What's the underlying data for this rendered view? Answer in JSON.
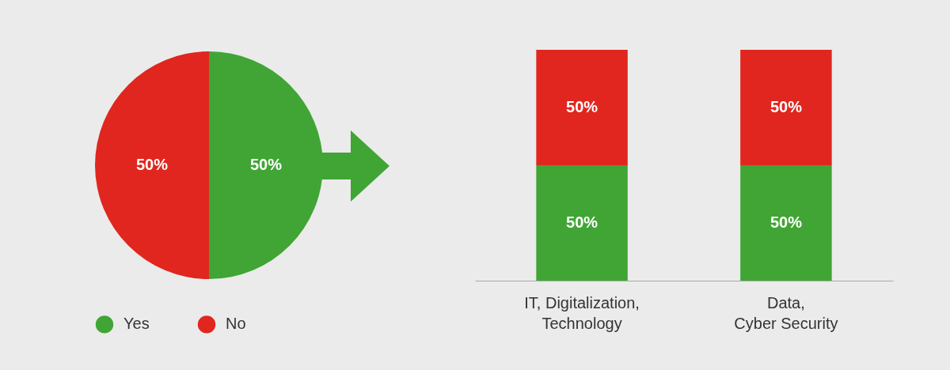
{
  "chart_data": [
    {
      "type": "pie",
      "categories": [
        "Yes",
        "No"
      ],
      "values": [
        50,
        50
      ],
      "value_labels": [
        "50%",
        "50%"
      ],
      "colors": [
        "#40a535",
        "#e0261e"
      ],
      "legend": "bottom"
    },
    {
      "type": "bar",
      "stacked": true,
      "categories": [
        "IT, Digitalization,\nTechnology",
        "Data,\nCyber Security"
      ],
      "series": [
        {
          "color": "#40a535",
          "values": [
            50,
            50
          ],
          "value_labels": [
            "50%",
            "50%"
          ]
        },
        {
          "color": "#e0261e",
          "values": [
            50,
            50
          ],
          "value_labels": [
            "50%",
            "50%"
          ]
        }
      ]
    }
  ]
}
